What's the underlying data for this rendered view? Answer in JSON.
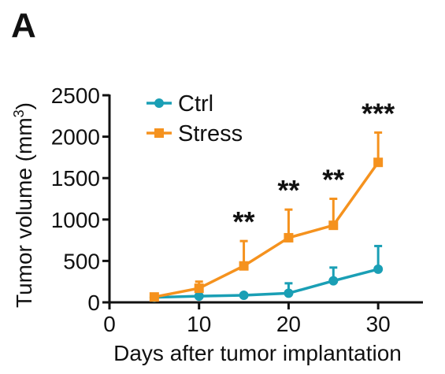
{
  "panel_label": "A",
  "colors": {
    "Ctrl": "#1a9fb5",
    "Stress": "#f5921e",
    "axis": "#111111"
  },
  "chart_data": {
    "type": "line",
    "xlabel": "Days after tumor implantation",
    "ylabel_main": "Tumor volume (mm",
    "ylabel_sup": "3",
    "ylabel_close": ")",
    "xlim": [
      0,
      35
    ],
    "ylim": [
      0,
      2500
    ],
    "xticks": [
      0,
      10,
      20,
      30
    ],
    "yticks": [
      0,
      500,
      1000,
      1500,
      2000,
      2500
    ],
    "grid": false,
    "legend_position": "top-left",
    "series": [
      {
        "name": "Ctrl",
        "marker": "circle",
        "x": [
          5,
          10,
          15,
          20,
          25,
          30
        ],
        "y": [
          60,
          75,
          85,
          110,
          260,
          400
        ],
        "err": [
          10,
          15,
          20,
          120,
          160,
          280
        ]
      },
      {
        "name": "Stress",
        "marker": "square",
        "x": [
          5,
          10,
          15,
          20,
          25,
          30
        ],
        "y": [
          65,
          170,
          440,
          780,
          930,
          1690
        ],
        "err": [
          15,
          80,
          300,
          340,
          320,
          360
        ]
      }
    ],
    "annotations": [
      {
        "x": 15,
        "text": "**"
      },
      {
        "x": 20,
        "text": "**"
      },
      {
        "x": 25,
        "text": "**"
      },
      {
        "x": 30,
        "text": "***"
      }
    ]
  }
}
